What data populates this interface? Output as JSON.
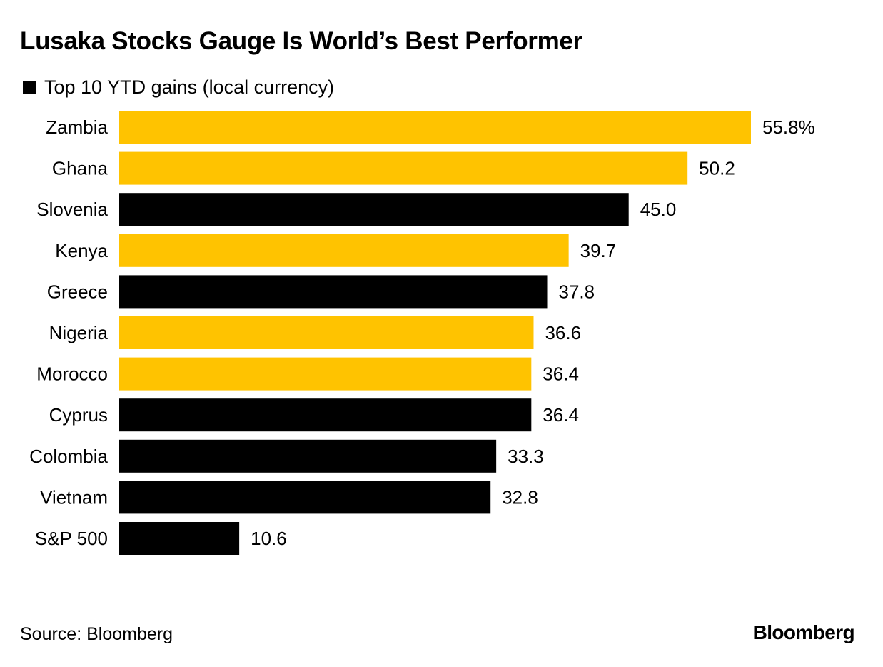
{
  "source": "Source: Bloomberg",
  "brand": "Bloomberg",
  "colors": {
    "highlight": "#FFC300",
    "default": "#000000"
  },
  "chart_data": {
    "type": "bar",
    "orientation": "horizontal",
    "title": "Lusaka Stocks Gauge Is World’s Best Performer",
    "legend": "Top 10 YTD gains (local currency)",
    "legend_placement": "top-left",
    "grid": false,
    "xlim": [
      0,
      55.8
    ],
    "categories": [
      "Zambia",
      "Ghana",
      "Slovenia",
      "Kenya",
      "Greece",
      "Nigeria",
      "Morocco",
      "Cyprus",
      "Colombia",
      "Vietnam",
      "S&P 500"
    ],
    "values": [
      55.8,
      50.2,
      45.0,
      39.7,
      37.8,
      36.6,
      36.4,
      36.4,
      33.3,
      32.8,
      10.6
    ],
    "value_labels": [
      "55.8%",
      "50.2",
      "45.0",
      "39.7",
      "37.8",
      "36.6",
      "36.4",
      "36.4",
      "33.3",
      "32.8",
      "10.6"
    ],
    "highlighted": [
      true,
      true,
      false,
      true,
      false,
      true,
      true,
      false,
      false,
      false,
      false
    ]
  }
}
